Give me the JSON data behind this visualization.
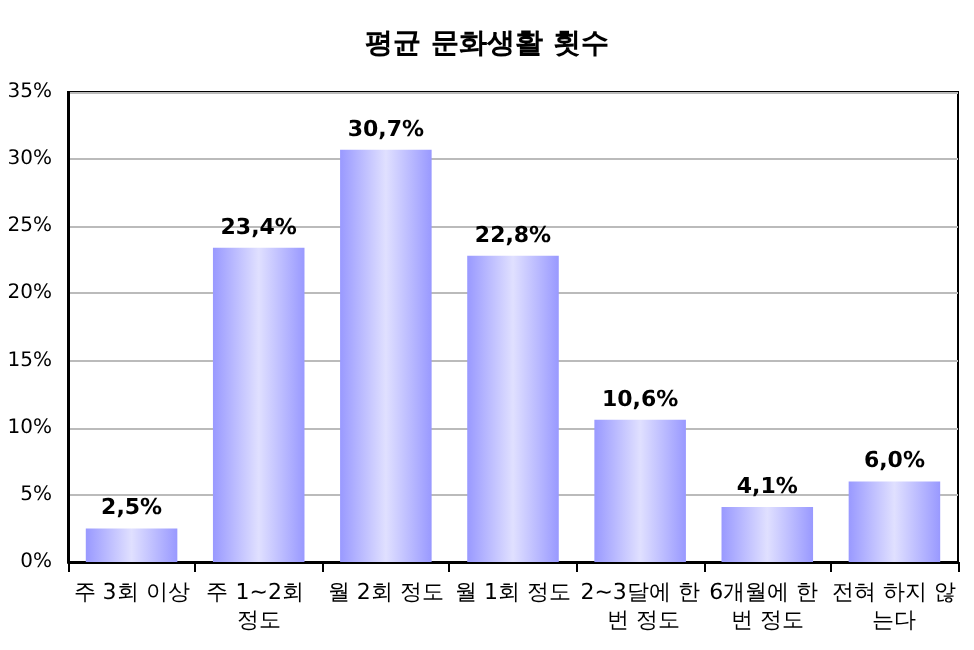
{
  "chart_data": {
    "type": "bar",
    "title": "평균 문화생활 횟수",
    "categories": [
      "주 3회 이상",
      "주 1~2회 정도",
      "월 2회 정도",
      "월 1회 정도",
      "2~3달에 한 번 정도",
      "6개월에 한 번 정도",
      "전혀 하지 않는다"
    ],
    "values": [
      2.5,
      23.4,
      30.7,
      22.8,
      10.6,
      4.1,
      6.0
    ],
    "value_labels": [
      "2,5%",
      "23,4%",
      "30,7%",
      "22,8%",
      "10,6%",
      "4,1%",
      "6,0%"
    ],
    "color": "#9999ff",
    "ylim": [
      0,
      35
    ],
    "yticks": [
      {
        "value": 0,
        "label": "0%"
      },
      {
        "value": 5,
        "label": "5%"
      },
      {
        "value": 10,
        "label": "10%"
      },
      {
        "value": 15,
        "label": "15%"
      },
      {
        "value": 20,
        "label": "20%"
      },
      {
        "value": 25,
        "label": "25%"
      },
      {
        "value": 30,
        "label": "30%"
      },
      {
        "value": 35,
        "label": "35%"
      }
    ],
    "grid": "y"
  }
}
